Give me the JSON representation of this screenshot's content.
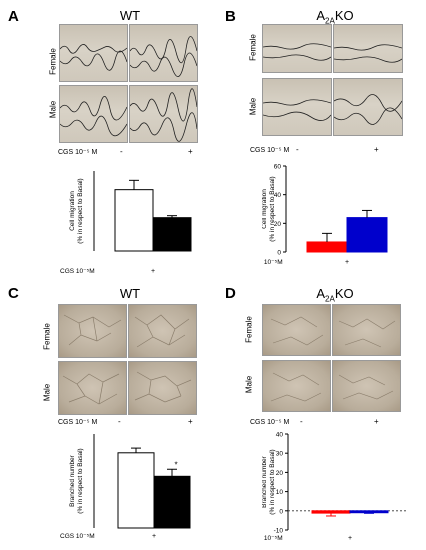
{
  "panels": {
    "A": {
      "letter": "A",
      "title": "WT",
      "rows": [
        "Female",
        "Male"
      ],
      "cgs_label": "CGS 10⁻⁵ M",
      "signs": [
        "-",
        "+"
      ]
    },
    "B": {
      "letter": "B",
      "title_main": "A",
      "title_sub": "2A",
      "title_tail": "KO",
      "rows": [
        "Female",
        "Male"
      ],
      "cgs_label": "CGS 10⁻⁵ M",
      "signs": [
        "-",
        "+"
      ]
    },
    "C": {
      "letter": "C",
      "title": "WT",
      "rows": [
        "Female",
        "Male"
      ],
      "cgs_label": "CGS 10⁻⁵ M",
      "signs": [
        "-",
        "+"
      ]
    },
    "D": {
      "letter": "D",
      "title_main": "A",
      "title_sub": "2A",
      "title_tail": "KO",
      "rows": [
        "Female",
        "Male"
      ],
      "cgs_label": "CGS 10⁻⁵ M",
      "signs": [
        "-",
        "+"
      ]
    }
  },
  "chart_data": [
    {
      "id": "A",
      "type": "bar",
      "ylabel": "Cell migration\n(% in respect to Basal)",
      "xlabel": "CGS 10⁻⁵M",
      "categories": [
        "Female",
        "Male"
      ],
      "tick_label": "+",
      "values": [
        46,
        25
      ],
      "errors": [
        7,
        1.5
      ],
      "colors": [
        "#ffffff",
        "#000000"
      ],
      "ylim": [
        0,
        60
      ],
      "yticks": [],
      "significance": []
    },
    {
      "id": "B",
      "type": "bar",
      "ylabel": "Cell migration\n(% in respect to Basal)",
      "xlabel": "CGS 10⁻⁵M",
      "categories": [
        "Female",
        "Male"
      ],
      "tick_label": "+",
      "values": [
        7,
        24
      ],
      "errors": [
        6,
        5
      ],
      "colors": [
        "#ff0000",
        "#0000cc"
      ],
      "ylim": [
        0,
        60
      ],
      "yticks": [
        "0",
        "20",
        "40",
        "60"
      ],
      "significance": []
    },
    {
      "id": "C",
      "type": "bar",
      "ylabel": "Branched number\n(% in respect to Basal)",
      "xlabel": "CGS 10⁻⁵M",
      "categories": [
        "Female",
        "Male"
      ],
      "tick_label": "+",
      "values": [
        32,
        22
      ],
      "errors": [
        2,
        3
      ],
      "colors": [
        "#ffffff",
        "#000000"
      ],
      "ylim": [
        0,
        40
      ],
      "yticks": [],
      "significance": [
        "",
        "*"
      ]
    },
    {
      "id": "D",
      "type": "bar",
      "ylabel": "Branched number\n(% in respect to Basal)",
      "xlabel": "CGS 10⁻⁵M",
      "categories": [
        "Female",
        "Male"
      ],
      "tick_label": "+",
      "values": [
        -1.2,
        -1
      ],
      "errors": [
        1.5,
        0.3
      ],
      "colors": [
        "#ff0000",
        "#0000cc"
      ],
      "ylim": [
        -10,
        40
      ],
      "yticks": [
        "-10",
        "0",
        "10",
        "20",
        "30",
        "40"
      ],
      "significance": []
    }
  ]
}
